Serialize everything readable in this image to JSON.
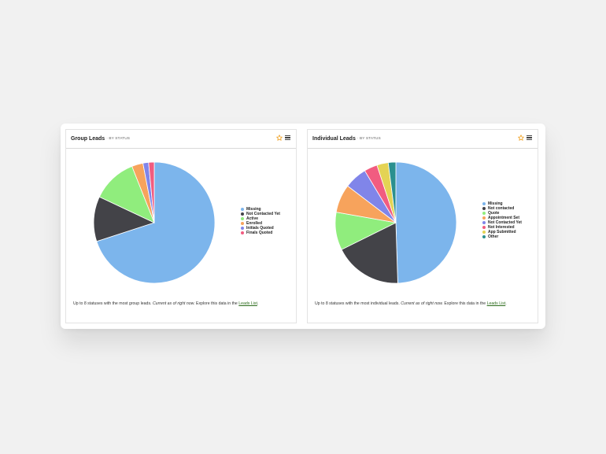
{
  "colors": {
    "accent_star": "#f0a020",
    "link": "#2e6d1e",
    "missing": "#7cb5ec",
    "not_contacted": "#434348",
    "green": "#90ed7d",
    "orange": "#f7a35c",
    "purple": "#8085e9",
    "pink": "#f15c80",
    "yellow": "#e4d354",
    "teal": "#2b908f"
  },
  "group": {
    "title": "Group Leads",
    "subtitle": "· BY STATUS",
    "star_icon": "star-outline-icon",
    "menu_icon": "hamburger-menu-icon",
    "footer_text": "Up to 8 statuses with the most group leads.",
    "footer_italic": "Current as of right now.",
    "footer_explore": "Explore this data in the",
    "footer_link": "Leads List",
    "footer_end": ".",
    "chart_data": {
      "type": "pie",
      "labels": [
        "Missing",
        "Not Contacted Yet",
        "Active",
        "Enrolled",
        "Initials Quoted",
        "Finals Quoted"
      ],
      "values": [
        70,
        12,
        12,
        3,
        1.5,
        1.5
      ],
      "colors": [
        "#7cb5ec",
        "#434348",
        "#90ed7d",
        "#f7a35c",
        "#8085e9",
        "#f15c80"
      ],
      "legend_position": "right"
    }
  },
  "individual": {
    "title": "Individual Leads",
    "subtitle": "· BY STATUS",
    "star_icon": "star-outline-icon",
    "menu_icon": "hamburger-menu-icon",
    "footer_text": "Up to 8 statuses with the most individual leads.",
    "footer_italic": "Current as of right now.",
    "footer_explore": "Explore this data in the",
    "footer_link": "Leads List",
    "footer_end": ".",
    "chart_data": {
      "type": "pie",
      "labels": [
        "Missing",
        "Not contacted",
        "Quote",
        "Appointment Set",
        "Not Contacted Yet",
        "Not Interested",
        "App Submitted",
        "Other"
      ],
      "values": [
        49,
        18,
        10,
        7.5,
        6,
        3.5,
        3,
        2
      ],
      "colors": [
        "#7cb5ec",
        "#434348",
        "#90ed7d",
        "#f7a35c",
        "#8085e9",
        "#f15c80",
        "#e4d354",
        "#2b908f"
      ],
      "legend_position": "right"
    }
  }
}
